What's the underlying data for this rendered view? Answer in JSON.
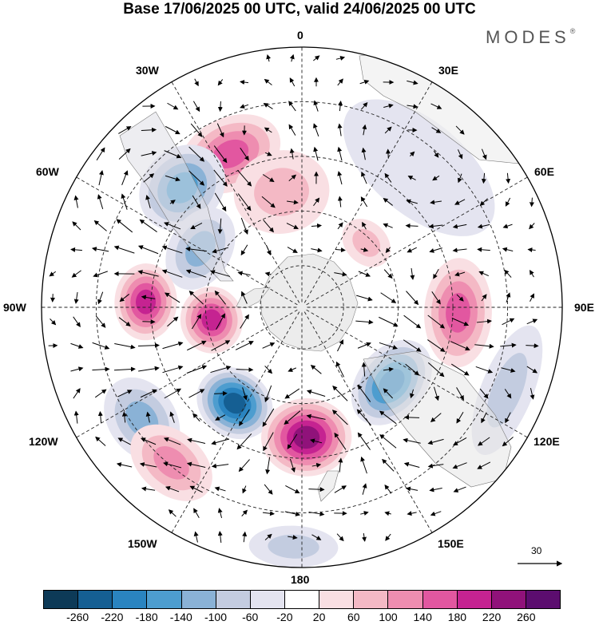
{
  "title": "Base 17/06/2025 00 UTC, valid 24/06/2025 00 UTC",
  "brand": {
    "name": "MODES",
    "mark": "®"
  },
  "meridian_labels": {
    "m0": "0",
    "m30e": "30E",
    "m60e": "60E",
    "m90e": "90E",
    "m120e": "120E",
    "m150e": "150E",
    "m180": "180",
    "m150w": "150W",
    "m120w": "120W",
    "m90w": "90W",
    "m60w": "60W",
    "m30w": "30W"
  },
  "reference_vector": {
    "value": "30"
  },
  "colorbar": {
    "colors": [
      "#0d3a57",
      "#155f93",
      "#2a84c0",
      "#4d9dcf",
      "#8ab2d6",
      "#c3cce0",
      "#e4e4f0",
      "#ffffff",
      "#f9dfe3",
      "#f4b9c5",
      "#ee8db0",
      "#e257a0",
      "#c52391",
      "#90127a",
      "#5c0d6f"
    ],
    "ticks": [
      "-260",
      "-220",
      "-180",
      "-140",
      "-100",
      "-60",
      "-20",
      "20",
      "60",
      "100",
      "140",
      "180",
      "220",
      "260"
    ]
  },
  "anomaly_centers": [
    {
      "sign": "pos",
      "amp": 150,
      "lon": -25,
      "r": 0.65,
      "rw": 0.14,
      "lw": 14
    },
    {
      "sign": "pos",
      "amp": 90,
      "lon": -10,
      "r": 0.45,
      "rw": 0.16,
      "lw": 18
    },
    {
      "sign": "neg",
      "amp": 150,
      "lon": -45,
      "r": 0.65,
      "rw": 0.15,
      "lw": 12
    },
    {
      "sign": "neg",
      "amp": 130,
      "lon": -60,
      "r": 0.45,
      "rw": 0.12,
      "lw": 16
    },
    {
      "sign": "pos",
      "amp": 200,
      "lon": -88,
      "r": 0.6,
      "rw": 0.12,
      "lw": 10
    },
    {
      "sign": "pos",
      "amp": 180,
      "lon": -98,
      "r": 0.35,
      "rw": 0.12,
      "lw": 14
    },
    {
      "sign": "neg",
      "amp": 230,
      "lon": -145,
      "r": 0.45,
      "rw": 0.13,
      "lw": 14
    },
    {
      "sign": "neg",
      "amp": 120,
      "lon": -125,
      "r": 0.75,
      "rw": 0.13,
      "lw": 10
    },
    {
      "sign": "pos",
      "amp": 110,
      "lon": -140,
      "r": 0.78,
      "rw": 0.12,
      "lw": 10
    },
    {
      "sign": "pos",
      "amp": 250,
      "lon": 178,
      "r": 0.5,
      "rw": 0.15,
      "lw": 15
    },
    {
      "sign": "neg",
      "amp": 90,
      "lon": -178,
      "r": 0.92,
      "rw": 0.08,
      "lw": 8
    },
    {
      "sign": "neg",
      "amp": 200,
      "lon": 130,
      "r": 0.45,
      "rw": 0.13,
      "lw": 18
    },
    {
      "sign": "pos",
      "amp": 170,
      "lon": 92,
      "r": 0.6,
      "rw": 0.13,
      "lw": 16
    },
    {
      "sign": "pos",
      "amp": 70,
      "lon": 45,
      "r": 0.35,
      "rw": 0.08,
      "lw": 10
    },
    {
      "sign": "neg",
      "amp": 50,
      "lon": 40,
      "r": 0.7,
      "rw": 0.18,
      "lw": 25
    },
    {
      "sign": "neg",
      "amp": 80,
      "lon": 112,
      "r": 0.85,
      "rw": 0.1,
      "lw": 15
    }
  ]
}
